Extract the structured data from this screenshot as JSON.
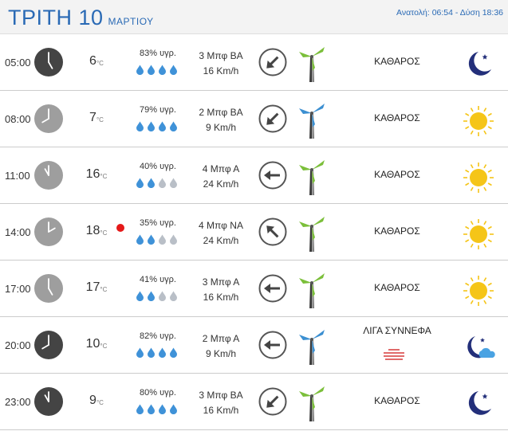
{
  "header": {
    "day": "ΤΡΙΤΗ 10",
    "month": "ΜΑΡΤΙΟΥ",
    "sun": "Ανατολή: 06:54  - Δύση 18:36"
  },
  "colors": {
    "accent": "#2a6ab5",
    "drop_full": "#3f92d8",
    "drop_empty": "#b9bfc7",
    "blade_green": "#7bbf3a",
    "blade_blue": "#3b8fd1",
    "sun": "#f5c518",
    "moon": "#232f7a",
    "alert": "#e51919"
  },
  "unit": "°C",
  "rows": [
    {
      "time": "05:00",
      "hour": 5,
      "clock": "dark",
      "temp": "6",
      "alert": false,
      "humidity": "83% υγρ.",
      "drops": 4,
      "wind_force": "3 Μπφ ΒΑ",
      "wind_speed": "16 Km/h",
      "arrow": "arrow-down-left-icon",
      "arrow_deg": 225,
      "mill": "green",
      "condition": "ΚΑΘΑΡΟΣ",
      "icon": "moon-icon"
    },
    {
      "time": "08:00",
      "hour": 8,
      "clock": "light",
      "temp": "7",
      "alert": false,
      "humidity": "79% υγρ.",
      "drops": 4,
      "wind_force": "2 Μπφ ΒΑ",
      "wind_speed": "9 Km/h",
      "arrow": "arrow-down-left-icon",
      "arrow_deg": 225,
      "mill": "blue",
      "condition": "ΚΑΘΑΡΟΣ",
      "icon": "sun-icon"
    },
    {
      "time": "11:00",
      "hour": 11,
      "clock": "light",
      "temp": "16",
      "alert": false,
      "humidity": "40% υγρ.",
      "drops": 2,
      "wind_force": "4 Μπφ Α",
      "wind_speed": "24 Km/h",
      "arrow": "arrow-left-icon",
      "arrow_deg": 270,
      "mill": "green",
      "condition": "ΚΑΘΑΡΟΣ",
      "icon": "sun-icon"
    },
    {
      "time": "14:00",
      "hour": 2,
      "clock": "light",
      "temp": "18",
      "alert": true,
      "humidity": "35% υγρ.",
      "drops": 2,
      "wind_force": "4 Μπφ ΝΑ",
      "wind_speed": "24 Km/h",
      "arrow": "arrow-up-left-icon",
      "arrow_deg": 315,
      "mill": "green",
      "condition": "ΚΑΘΑΡΟΣ",
      "icon": "sun-icon"
    },
    {
      "time": "17:00",
      "hour": 5,
      "clock": "light",
      "temp": "17",
      "alert": false,
      "humidity": "41% υγρ.",
      "drops": 2,
      "wind_force": "3 Μπφ Α",
      "wind_speed": "16 Km/h",
      "arrow": "arrow-left-icon",
      "arrow_deg": 270,
      "mill": "green",
      "condition": "ΚΑΘΑΡΟΣ",
      "icon": "sun-icon"
    },
    {
      "time": "20:00",
      "hour": 8,
      "clock": "dark",
      "temp": "10",
      "alert": false,
      "humidity": "82% υγρ.",
      "drops": 4,
      "wind_force": "2 Μπφ Α",
      "wind_speed": "9 Km/h",
      "arrow": "arrow-left-icon",
      "arrow_deg": 270,
      "mill": "blue",
      "condition": "ΛΙΓΑ ΣΥΝΝΕΦΑ",
      "icon": "moon-cloud-icon",
      "cloud_icon": true
    },
    {
      "time": "23:00",
      "hour": 11,
      "clock": "dark",
      "temp": "9",
      "alert": false,
      "humidity": "80% υγρ.",
      "drops": 4,
      "wind_force": "3 Μπφ ΒΑ",
      "wind_speed": "16 Km/h",
      "arrow": "arrow-down-left-icon",
      "arrow_deg": 225,
      "mill": "green",
      "condition": "ΚΑΘΑΡΟΣ",
      "icon": "moon-icon"
    }
  ]
}
